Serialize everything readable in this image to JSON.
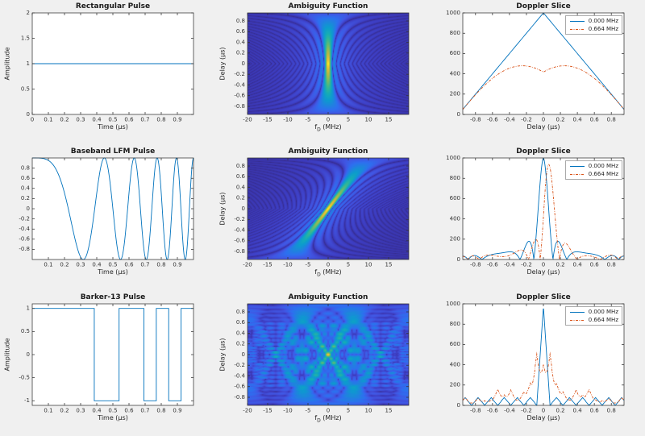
{
  "figure": {
    "bg": "#f0f0f0",
    "axes_bg": "#ffffff",
    "axis_color": "#333333",
    "title_color": "#1a1a1a",
    "line_blue": "#0072BD",
    "line_orange": "#D95319"
  },
  "colormap": {
    "name": "parula",
    "stops": [
      [
        0,
        "#352a87"
      ],
      [
        0.1,
        "#3d3cc0"
      ],
      [
        0.2,
        "#4156e3"
      ],
      [
        0.3,
        "#2e6ff0"
      ],
      [
        0.4,
        "#1e85dd"
      ],
      [
        0.5,
        "#0d9bce"
      ],
      [
        0.6,
        "#15abb7"
      ],
      [
        0.7,
        "#38b791"
      ],
      [
        0.8,
        "#81ba5e"
      ],
      [
        0.88,
        "#c0b83f"
      ],
      [
        0.95,
        "#edc532"
      ],
      [
        1,
        "#f9fb15"
      ]
    ]
  },
  "legend": {
    "entries": [
      {
        "label": "0.000 MHz",
        "color": "#0072BD",
        "style": "solid"
      },
      {
        "label": "0.664 MHz",
        "color": "#D95319",
        "style": "dashdot"
      }
    ]
  },
  "chart_data": [
    {
      "id": "rect-pulse",
      "type": "line",
      "title": "Rectangular Pulse",
      "xlabel": "Time (μs)",
      "ylabel": "Amplitude",
      "xlim": [
        0,
        1
      ],
      "ylim": [
        0,
        2
      ],
      "xticks": [
        0,
        0.1,
        0.2,
        0.3,
        0.4,
        0.5,
        0.6,
        0.7,
        0.8,
        0.9
      ],
      "yticks": [
        0,
        0.5,
        1,
        1.5,
        2
      ],
      "signal": {
        "kind": "rect",
        "amplitude": 1,
        "duration_us": 1
      }
    },
    {
      "id": "ambiguity-rect",
      "type": "heatmap",
      "title": "Ambiguity Function",
      "xlabel": {
        "pre": "f",
        "sub": "D",
        "post": " (MHz)"
      },
      "ylabel": "Delay (μs)",
      "xlim": [
        -20,
        20
      ],
      "ylim": [
        -0.95,
        0.95
      ],
      "xticks": [
        -20,
        -15,
        -10,
        -5,
        0,
        5,
        10,
        15
      ],
      "yticks": [
        -0.8,
        -0.6,
        -0.4,
        -0.2,
        0,
        0.2,
        0.4,
        0.6,
        0.8
      ],
      "amb": {
        "waveform": "rect",
        "T_us": 1,
        "display_gamma": 0.6
      }
    },
    {
      "id": "doppler-rect",
      "type": "slices",
      "title": "Doppler Slice",
      "xlabel": "Delay (μs)",
      "xlim": [
        -0.95,
        0.95
      ],
      "ylim": [
        0,
        1000
      ],
      "xticks": [
        -0.8,
        -0.6,
        -0.4,
        -0.2,
        0,
        0.2,
        0.4,
        0.6,
        0.8
      ],
      "yticks": [
        0,
        200,
        400,
        600,
        800,
        1000
      ],
      "amb": {
        "waveform": "rect",
        "T_us": 1
      },
      "slice_freqs_mhz": [
        0,
        0.664
      ],
      "peak_scale": 1000,
      "has_legend": true
    },
    {
      "id": "lfm-pulse",
      "type": "line",
      "title": "Baseband LFM Pulse",
      "xlabel": "Time (μs)",
      "ylabel": "",
      "xlim": [
        0,
        1
      ],
      "ylim": [
        -1,
        1
      ],
      "xticks": [
        0.1,
        0.2,
        0.3,
        0.4,
        0.5,
        0.6,
        0.7,
        0.8,
        0.9
      ],
      "yticks": [
        -0.8,
        -0.6,
        -0.4,
        -0.2,
        0,
        0.2,
        0.4,
        0.6,
        0.8
      ],
      "signal": {
        "kind": "lfm",
        "duration_us": 1,
        "bandwidth_mhz": 10
      }
    },
    {
      "id": "ambiguity-lfm",
      "type": "heatmap",
      "title": "Ambiguity Function",
      "xlabel": {
        "pre": "f",
        "sub": "D",
        "post": " (MHz)"
      },
      "ylabel": "Delay (μs)",
      "xlim": [
        -20,
        20
      ],
      "ylim": [
        -0.95,
        0.95
      ],
      "xticks": [
        -20,
        -15,
        -10,
        -5,
        0,
        5,
        10,
        15
      ],
      "yticks": [
        -0.8,
        -0.6,
        -0.4,
        -0.2,
        0,
        0.2,
        0.4,
        0.6,
        0.8
      ],
      "amb": {
        "waveform": "lfm",
        "k_mhz_per_us": 10,
        "display_gamma": 0.6
      }
    },
    {
      "id": "doppler-lfm",
      "type": "slices",
      "title": "Doppler Slice",
      "xlabel": "Delay (μs)",
      "xlim": [
        -0.95,
        0.95
      ],
      "ylim": [
        0,
        1000
      ],
      "xticks": [
        -0.8,
        -0.6,
        -0.4,
        -0.2,
        0,
        0.2,
        0.4,
        0.6,
        0.8
      ],
      "yticks": [
        0,
        200,
        400,
        600,
        800,
        1000
      ],
      "amb": {
        "waveform": "lfm",
        "k_mhz_per_us": 10
      },
      "slice_freqs_mhz": [
        0,
        0.664
      ],
      "peak_scale": 1000,
      "has_legend": true
    },
    {
      "id": "barker-pulse",
      "type": "line",
      "title": "Barker-13 Pulse",
      "xlabel": "Time (μs)",
      "ylabel": "Amplitude",
      "xlim": [
        0,
        1
      ],
      "ylim": [
        -1.1,
        1.1
      ],
      "xticks": [
        0.1,
        0.2,
        0.3,
        0.4,
        0.5,
        0.6,
        0.7,
        0.8,
        0.9
      ],
      "yticks": [
        -1,
        -0.5,
        0,
        0.5,
        1
      ],
      "signal": {
        "kind": "barker",
        "code": [
          1,
          1,
          1,
          1,
          1,
          -1,
          -1,
          1,
          1,
          -1,
          1,
          -1,
          1
        ],
        "duration_us": 1
      }
    },
    {
      "id": "ambiguity-barker",
      "type": "heatmap",
      "title": "Ambiguity Function",
      "xlabel": {
        "pre": "f",
        "sub": "D",
        "post": " (MHz)"
      },
      "ylabel": "Delay (μs)",
      "xlim": [
        -20,
        20
      ],
      "ylim": [
        -0.95,
        0.95
      ],
      "xticks": [
        -20,
        -15,
        -10,
        -5,
        0,
        5,
        10,
        15
      ],
      "yticks": [
        -0.8,
        -0.6,
        -0.4,
        -0.2,
        0,
        0.2,
        0.4,
        0.6,
        0.8
      ],
      "amb": {
        "waveform": "barker",
        "code": [
          1,
          1,
          1,
          1,
          1,
          -1,
          -1,
          1,
          1,
          -1,
          1,
          -1,
          1
        ],
        "display_gamma": 0.45
      }
    },
    {
      "id": "doppler-barker",
      "type": "slices",
      "title": "Doppler Slice",
      "xlabel": "Delay (μs)",
      "xlim": [
        -0.95,
        0.95
      ],
      "ylim": [
        0,
        1000
      ],
      "xticks": [
        -0.8,
        -0.6,
        -0.4,
        -0.2,
        0,
        0.2,
        0.4,
        0.6,
        0.8
      ],
      "yticks": [
        0,
        200,
        400,
        600,
        800,
        1000
      ],
      "amb": {
        "waveform": "barker",
        "code": [
          1,
          1,
          1,
          1,
          1,
          -1,
          -1,
          1,
          1,
          -1,
          1,
          -1,
          1
        ]
      },
      "slice_freqs_mhz": [
        0,
        0.664
      ],
      "peak_scale": 1000,
      "has_legend": true
    }
  ]
}
